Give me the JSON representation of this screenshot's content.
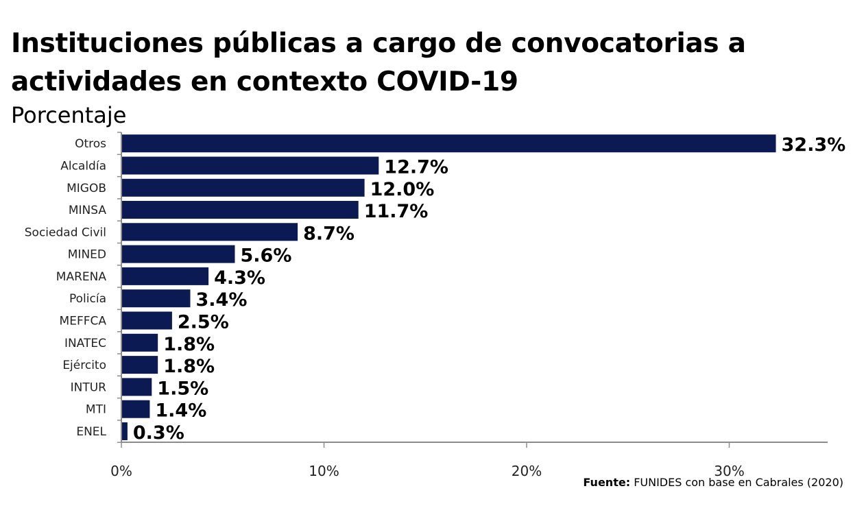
{
  "title": "Instituciones públicas a cargo de convocatorias a actividades en contexto COVID-19",
  "subtitle": "Porcentaje",
  "source": {
    "label": "Fuente:",
    "text": "FUNIDES con base en Cabrales (2020)"
  },
  "colors": {
    "bar": "#0c1a54",
    "axis": "#8c8c8c"
  },
  "chart_data": {
    "type": "bar",
    "orientation": "horizontal",
    "categories": [
      "Otros",
      "Alcaldía",
      "MIGOB",
      "MINSA",
      "Sociedad Civil",
      "MINED",
      "MARENA",
      "Policía",
      "MEFFCA",
      "INATEC",
      "Ejército",
      "INTUR",
      "MTI",
      "ENEL"
    ],
    "values": [
      32.3,
      12.7,
      12.0,
      11.7,
      8.7,
      5.6,
      4.3,
      3.4,
      2.5,
      1.8,
      1.8,
      1.5,
      1.4,
      0.3
    ],
    "value_labels": [
      "32.3%",
      "12.7%",
      "12.0%",
      "11.7%",
      "8.7%",
      "5.6%",
      "4.3%",
      "3.4%",
      "2.5%",
      "1.8%",
      "1.8%",
      "1.5%",
      "1.4%",
      "0.3%"
    ],
    "x_ticks": [
      0,
      10,
      20,
      30
    ],
    "x_tick_labels": [
      "0%",
      "10%",
      "20%",
      "30%"
    ],
    "xlim": [
      0,
      35
    ],
    "grid": false,
    "legend": "none"
  }
}
